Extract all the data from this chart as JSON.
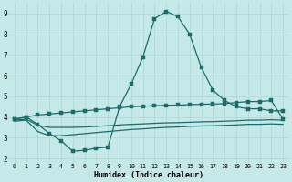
{
  "xlabel": "Humidex (Indice chaleur)",
  "bg_color": "#c5e8e8",
  "grid_color": "#aed4d4",
  "line_color": "#1e6b6b",
  "xlim": [
    -0.5,
    23.5
  ],
  "ylim": [
    1.8,
    9.5
  ],
  "yticks": [
    2,
    3,
    4,
    5,
    6,
    7,
    8,
    9
  ],
  "xticks": [
    0,
    1,
    2,
    3,
    4,
    5,
    6,
    7,
    8,
    9,
    10,
    11,
    12,
    13,
    14,
    15,
    16,
    17,
    18,
    19,
    20,
    21,
    22,
    23
  ],
  "peaked_x": [
    0,
    1,
    2,
    3,
    4,
    5,
    6,
    7,
    8,
    9,
    10,
    11,
    12,
    13,
    14,
    15,
    16,
    17,
    18,
    19,
    20,
    21,
    22,
    23
  ],
  "peaked_y": [
    3.9,
    4.0,
    3.65,
    3.2,
    2.85,
    2.35,
    2.4,
    2.5,
    2.55,
    4.5,
    5.6,
    6.9,
    8.75,
    9.1,
    8.85,
    8.0,
    6.4,
    5.3,
    4.8,
    4.5,
    4.4,
    4.4,
    4.3,
    4.3
  ],
  "upper_line_x": [
    0,
    1,
    2,
    3,
    4,
    5,
    6,
    7,
    8,
    9,
    10,
    11,
    12,
    13,
    14,
    15,
    16,
    17,
    18,
    19,
    20,
    21,
    22,
    23
  ],
  "upper_line_y": [
    3.9,
    4.0,
    4.1,
    4.15,
    4.2,
    4.25,
    4.3,
    4.35,
    4.4,
    4.45,
    4.5,
    4.52,
    4.55,
    4.57,
    4.58,
    4.6,
    4.62,
    4.63,
    4.65,
    4.7,
    4.75,
    4.75,
    4.8,
    3.9
  ],
  "mid_line_x": [
    0,
    1,
    2,
    3,
    4,
    5,
    6,
    7,
    8,
    9,
    10,
    11,
    12,
    13,
    14,
    15,
    16,
    17,
    18,
    19,
    20,
    21,
    22,
    23
  ],
  "mid_line_y": [
    3.85,
    3.9,
    3.6,
    3.5,
    3.5,
    3.5,
    3.52,
    3.55,
    3.58,
    3.62,
    3.65,
    3.67,
    3.7,
    3.72,
    3.73,
    3.75,
    3.77,
    3.78,
    3.8,
    3.82,
    3.85,
    3.85,
    3.87,
    3.85
  ],
  "lower_line_x": [
    0,
    1,
    2,
    3,
    4,
    5,
    6,
    7,
    8,
    9,
    10,
    11,
    12,
    13,
    14,
    15,
    16,
    17,
    18,
    19,
    20,
    21,
    22,
    23
  ],
  "lower_line_y": [
    3.8,
    3.85,
    3.3,
    3.1,
    3.1,
    3.15,
    3.2,
    3.25,
    3.3,
    3.35,
    3.4,
    3.43,
    3.47,
    3.5,
    3.52,
    3.55,
    3.57,
    3.58,
    3.6,
    3.62,
    3.65,
    3.65,
    3.67,
    3.65
  ]
}
